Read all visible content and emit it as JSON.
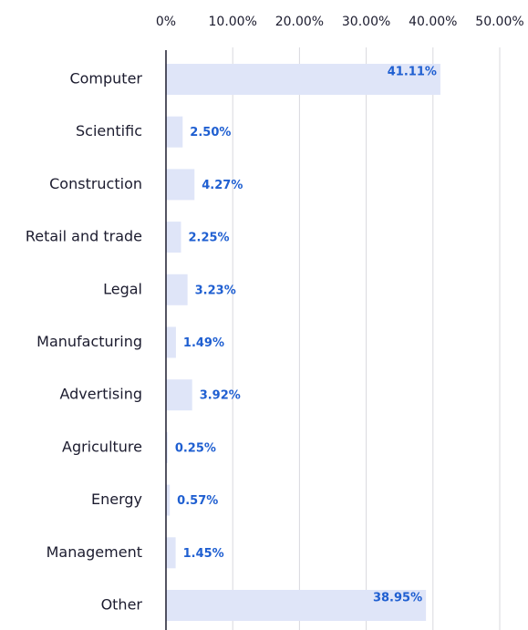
{
  "chart_data": {
    "type": "hbar",
    "categories": [
      "Computer",
      "Scientific",
      "Construction",
      "Retail and trade",
      "Legal",
      "Manufacturing",
      "Advertising",
      "Agriculture",
      "Energy",
      "Management",
      "Other"
    ],
    "values": [
      41.11,
      2.5,
      4.27,
      2.25,
      3.23,
      1.49,
      3.92,
      0.25,
      0.57,
      1.45,
      38.95
    ],
    "value_labels": [
      "41.11%",
      "2.50%",
      "4.27%",
      "2.25%",
      "3.23%",
      "1.49%",
      "3.92%",
      "0.25%",
      "0.57%",
      "1.45%",
      "38.95%"
    ],
    "color": "#dfe5f8",
    "label_color": "#1f5fd1",
    "xlim": [
      0,
      50
    ],
    "xticks": [
      {
        "value": 0,
        "label": "0%"
      },
      {
        "value": 10,
        "label": "10.00%"
      },
      {
        "value": 20,
        "label": "20.00%"
      },
      {
        "value": 30,
        "label": "30.00%"
      },
      {
        "value": 40,
        "label": "40.00%"
      },
      {
        "value": 50,
        "label": "50.00%"
      }
    ],
    "grid": true
  }
}
